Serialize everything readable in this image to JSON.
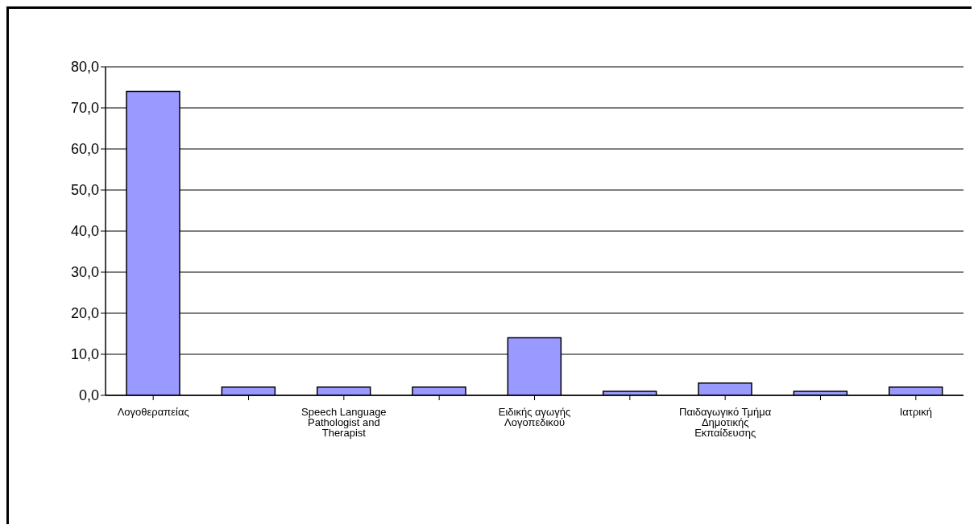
{
  "chart_data": {
    "type": "bar",
    "categories": [
      "Λογοθεραπείας",
      null,
      "Speech Language Pathologist and Therapist",
      null,
      "Ειδικής αγωγής Λογοπεδικού",
      null,
      "Παιδαγωγικό Τμήμα Δημοτικής Εκπαίδευσης",
      null,
      "Ιατρική"
    ],
    "values": [
      74,
      2,
      2,
      2,
      14,
      1,
      3,
      1,
      2
    ],
    "color": "#9999ff",
    "ylim": [
      0,
      80
    ],
    "yticks": [
      {
        "value": 0,
        "label": "0,0"
      },
      {
        "value": 10,
        "label": "10,0"
      },
      {
        "value": 20,
        "label": "20,0"
      },
      {
        "value": 30,
        "label": "30,0"
      },
      {
        "value": 40,
        "label": "40,0"
      },
      {
        "value": 50,
        "label": "50,0"
      },
      {
        "value": 60,
        "label": "60,0"
      },
      {
        "value": 70,
        "label": "70,0"
      },
      {
        "value": 80,
        "label": "80,0"
      }
    ],
    "grid": "y",
    "legend": false
  }
}
